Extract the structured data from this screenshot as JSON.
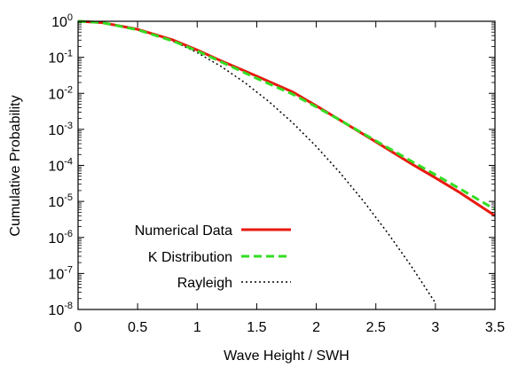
{
  "chart_data": {
    "type": "line",
    "xlabel": "Wave Height / SWH",
    "ylabel": "Cumulative Probability",
    "xlim": [
      0,
      3.5
    ],
    "ylim": [
      1e-08,
      1
    ],
    "yscale": "log",
    "grid": false,
    "legend_placement": "bottom-left",
    "x_ticks": [
      {
        "value": 0,
        "label": "0"
      },
      {
        "value": 0.5,
        "label": "0.5"
      },
      {
        "value": 1,
        "label": "1"
      },
      {
        "value": 1.5,
        "label": "1.5"
      },
      {
        "value": 2,
        "label": "2"
      },
      {
        "value": 2.5,
        "label": "2.5"
      },
      {
        "value": 3,
        "label": "3"
      },
      {
        "value": 3.5,
        "label": "3.5"
      }
    ],
    "y_ticks": [
      {
        "value": 1,
        "base": "10",
        "exp": "0"
      },
      {
        "value": 0.1,
        "base": "10",
        "exp": "-1"
      },
      {
        "value": 0.01,
        "base": "10",
        "exp": "-2"
      },
      {
        "value": 0.001,
        "base": "10",
        "exp": "-3"
      },
      {
        "value": 0.0001,
        "base": "10",
        "exp": "-4"
      },
      {
        "value": 1e-05,
        "base": "10",
        "exp": "-5"
      },
      {
        "value": 1e-06,
        "base": "10",
        "exp": "-6"
      },
      {
        "value": 1e-07,
        "base": "10",
        "exp": "-7"
      },
      {
        "value": 1e-08,
        "base": "10",
        "exp": "-8"
      }
    ],
    "series": [
      {
        "name": "Numerical Data",
        "color": "#e8190f",
        "style": "solid",
        "x": [
          0,
          0.2,
          0.5,
          0.8,
          1.0,
          1.2,
          1.5,
          1.8,
          2.0,
          2.2,
          2.5,
          2.8,
          3.0,
          3.2,
          3.5
        ],
        "y": [
          1,
          0.92,
          0.6,
          0.3,
          0.16,
          0.08,
          0.03,
          0.011,
          0.0045,
          0.0018,
          0.00045,
          0.00011,
          4.5e-05,
          1.8e-05,
          4e-06
        ]
      },
      {
        "name": "K Distribution",
        "color": "#33dd22",
        "style": "dashed",
        "x": [
          0,
          0.2,
          0.5,
          0.8,
          1.0,
          1.2,
          1.5,
          1.8,
          2.0,
          2.2,
          2.5,
          2.8,
          3.0,
          3.2,
          3.5
        ],
        "y": [
          1,
          0.92,
          0.58,
          0.28,
          0.15,
          0.075,
          0.026,
          0.0095,
          0.0042,
          0.0018,
          0.00048,
          0.00013,
          5.5e-05,
          2.3e-05,
          6e-06
        ]
      },
      {
        "name": "Rayleigh",
        "color": "#000000",
        "style": "dotted",
        "x": [
          0,
          0.2,
          0.4,
          0.6,
          0.8,
          1.0,
          1.2,
          1.4,
          1.6,
          1.8,
          2.0,
          2.2,
          2.4,
          2.6,
          2.8,
          3.0
        ],
        "y": [
          1,
          0.923,
          0.726,
          0.487,
          0.278,
          0.135,
          0.0561,
          0.0198,
          0.00598,
          0.00154,
          0.000335,
          6.2e-05,
          9.8e-06,
          1.33e-06,
          1.55e-07,
          1.52e-08
        ]
      }
    ]
  }
}
